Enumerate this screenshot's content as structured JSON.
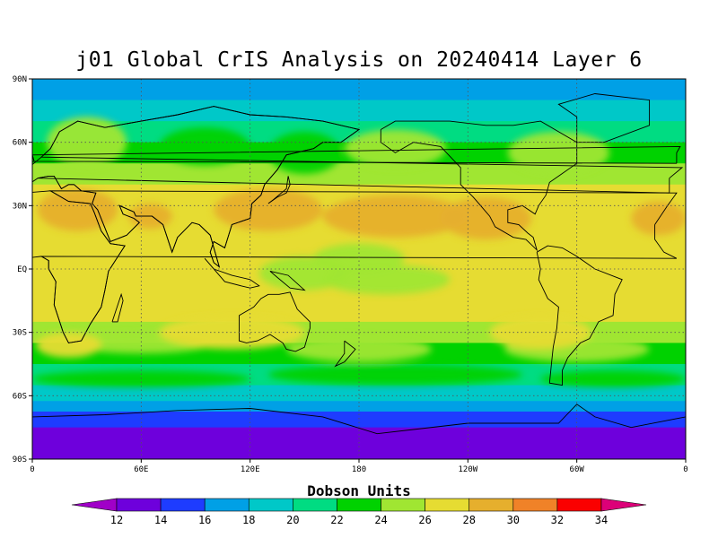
{
  "title": "j01 Global CrIS Analysis on 20240414 Layer 6",
  "lat_labels": [
    "90N",
    "60N",
    "30N",
    "EQ",
    "30S",
    "60S",
    "90S"
  ],
  "lon_labels": [
    "0",
    "60E",
    "120E",
    "180",
    "120W",
    "60W",
    "0"
  ],
  "colorbar": {
    "title": "Dobson Units",
    "labels": [
      "12",
      "14",
      "16",
      "18",
      "20",
      "22",
      "24",
      "26",
      "28",
      "30",
      "32",
      "34"
    ],
    "colors": [
      "#a000c8",
      "#6e00dc",
      "#1e3cff",
      "#00a0e6",
      "#00c8c8",
      "#00dc82",
      "#00d200",
      "#a0e632",
      "#e6dc32",
      "#e6af2d",
      "#f08228",
      "#fa0000",
      "#dc0078"
    ]
  },
  "chart_data": {
    "type": "heatmap",
    "title": "j01 Global CrIS Analysis on 20240414 Layer 6",
    "xlabel": "",
    "ylabel": "",
    "x_range": [
      0,
      360
    ],
    "y_range": [
      -90,
      90
    ],
    "x_tick_labels": [
      "0",
      "60E",
      "120E",
      "180",
      "120W",
      "60W",
      "0"
    ],
    "y_tick_labels": [
      "90N",
      "60N",
      "30N",
      "EQ",
      "30S",
      "60S",
      "90S"
    ],
    "colorbar_label": "Dobson Units",
    "colorbar_levels": [
      12,
      14,
      16,
      18,
      20,
      22,
      24,
      26,
      28,
      30,
      32,
      34
    ],
    "grid": true,
    "zonal_profile": [
      {
        "lat": 90,
        "value": 17
      },
      {
        "lat": 80,
        "value": 18
      },
      {
        "lat": 70,
        "value": 20
      },
      {
        "lat": 60,
        "value": 22
      },
      {
        "lat": 50,
        "value": 24
      },
      {
        "lat": 40,
        "value": 26
      },
      {
        "lat": 30,
        "value": 27
      },
      {
        "lat": 20,
        "value": 27
      },
      {
        "lat": 10,
        "value": 26
      },
      {
        "lat": 0,
        "value": 27
      },
      {
        "lat": -10,
        "value": 27
      },
      {
        "lat": -20,
        "value": 27
      },
      {
        "lat": -30,
        "value": 25
      },
      {
        "lat": -40,
        "value": 23
      },
      {
        "lat": -50,
        "value": 21
      },
      {
        "lat": -60,
        "value": 19
      },
      {
        "lat": -70,
        "value": 15
      },
      {
        "lat": -80,
        "value": 13
      },
      {
        "lat": -90,
        "value": 12
      }
    ]
  }
}
